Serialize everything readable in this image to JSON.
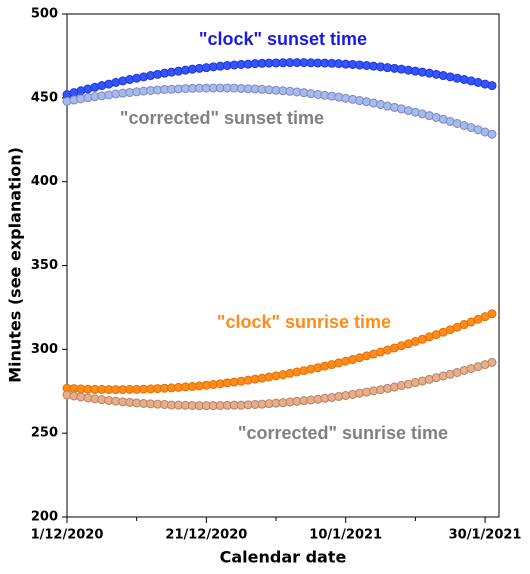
{
  "chart_data": {
    "type": "scatter",
    "x_label": "Calendar date",
    "y_label": "Minutes (see explanation)",
    "xlim": [
      "2020-12-01",
      "2021-02-01"
    ],
    "xticks": [
      {
        "value": "2020-12-01",
        "label": "1/12/2020"
      },
      {
        "value": "2020-12-21",
        "label": "21/12/2020"
      },
      {
        "value": "2021-01-10",
        "label": "10/1/2021"
      },
      {
        "value": "2021-01-30",
        "label": "30/1/2021"
      }
    ],
    "x_minor_ticks": [
      "2020-12-11",
      "2020-12-31",
      "2021-01-20"
    ],
    "ylim": [
      200,
      500
    ],
    "yticks": [
      200,
      250,
      300,
      350,
      400,
      450,
      500
    ],
    "grid": false,
    "x": [
      "2020-12-01",
      "2020-12-02",
      "2020-12-03",
      "2020-12-04",
      "2020-12-05",
      "2020-12-06",
      "2020-12-07",
      "2020-12-08",
      "2020-12-09",
      "2020-12-10",
      "2020-12-11",
      "2020-12-12",
      "2020-12-13",
      "2020-12-14",
      "2020-12-15",
      "2020-12-16",
      "2020-12-17",
      "2020-12-18",
      "2020-12-19",
      "2020-12-20",
      "2020-12-21",
      "2020-12-22",
      "2020-12-23",
      "2020-12-24",
      "2020-12-25",
      "2020-12-26",
      "2020-12-27",
      "2020-12-28",
      "2020-12-29",
      "2020-12-30",
      "2020-12-31",
      "2021-01-01",
      "2021-01-02",
      "2021-01-03",
      "2021-01-04",
      "2021-01-05",
      "2021-01-06",
      "2021-01-07",
      "2021-01-08",
      "2021-01-09",
      "2021-01-10",
      "2021-01-11",
      "2021-01-12",
      "2021-01-13",
      "2021-01-14",
      "2021-01-15",
      "2021-01-16",
      "2021-01-17",
      "2021-01-18",
      "2021-01-19",
      "2021-01-20",
      "2021-01-21",
      "2021-01-22",
      "2021-01-23",
      "2021-01-24",
      "2021-01-25",
      "2021-01-26",
      "2021-01-27",
      "2021-01-28",
      "2021-01-29",
      "2021-01-30",
      "2021-01-31"
    ],
    "series": [
      {
        "name": "\"clock\" sunset time",
        "color": "#3355ff",
        "edge_color": "#1f35d6",
        "label_color": "#1a1ae6",
        "values": [
          451.9,
          453.1,
          454.2,
          455.3,
          456.3,
          457.3,
          458.2,
          459.2,
          460.1,
          460.9,
          461.7,
          462.5,
          463.3,
          464.0,
          464.7,
          465.3,
          465.9,
          466.5,
          467.1,
          467.6,
          468.0,
          468.5,
          468.9,
          469.3,
          469.6,
          469.9,
          470.1,
          470.4,
          470.6,
          470.7,
          470.8,
          470.9,
          471.0,
          471.0,
          471.0,
          470.9,
          470.8,
          470.7,
          470.6,
          470.4,
          470.1,
          469.9,
          469.6,
          469.3,
          468.9,
          468.5,
          468.0,
          467.6,
          467.1,
          466.5,
          465.9,
          465.3,
          464.7,
          464.0,
          463.3,
          462.5,
          461.7,
          460.9,
          460.1,
          459.2,
          458.2,
          457.3
        ]
      },
      {
        "name": "\"corrected\" sunset time",
        "color": "#a9b9ea",
        "edge_color": "#7889c6",
        "label_color": "#808080",
        "values": [
          447.9,
          448.7,
          449.4,
          450.1,
          450.7,
          451.2,
          451.7,
          452.3,
          452.8,
          453.2,
          453.6,
          454.0,
          454.4,
          454.7,
          455.0,
          455.1,
          455.3,
          455.5,
          455.7,
          455.8,
          455.8,
          455.9,
          455.9,
          455.9,
          455.8,
          455.6,
          455.4,
          455.3,
          455.1,
          454.8,
          454.5,
          454.2,
          453.9,
          453.5,
          453.1,
          452.5,
          452.0,
          451.5,
          451.0,
          450.4,
          449.7,
          449.1,
          448.4,
          447.7,
          446.9,
          446.0,
          445.1,
          444.3,
          443.4,
          442.4,
          441.4,
          440.4,
          439.4,
          438.3,
          437.2,
          435.9,
          434.7,
          433.5,
          432.3,
          431.0,
          429.6,
          428.3
        ]
      },
      {
        "name": "\"clock\" sunrise time",
        "color": "#ff8c1a",
        "edge_color": "#e07000",
        "label_color": "#ff8c1a",
        "values": [
          276.8,
          276.6,
          276.4,
          276.2,
          276.1,
          276.1,
          276.0,
          276.0,
          276.0,
          276.1,
          276.1,
          276.2,
          276.4,
          276.6,
          276.8,
          277.0,
          277.3,
          277.6,
          277.9,
          278.2,
          278.6,
          279.0,
          279.5,
          280.0,
          280.5,
          281.0,
          281.6,
          282.2,
          282.8,
          283.5,
          284.2,
          284.9,
          285.7,
          286.5,
          287.3,
          288.2,
          289.0,
          290.0,
          290.9,
          291.9,
          292.9,
          293.9,
          295.0,
          296.1,
          297.2,
          298.4,
          299.6,
          300.8,
          302.1,
          303.3,
          304.7,
          306.0,
          307.4,
          308.8,
          310.2,
          311.7,
          313.2,
          314.8,
          316.3,
          317.9,
          319.5,
          321.2
        ]
      },
      {
        "name": "\"corrected\" sunrise time",
        "color": "#e6ae8c",
        "edge_color": "#b9805e",
        "label_color": "#808080",
        "values": [
          272.8,
          272.2,
          271.6,
          271.0,
          270.5,
          270.0,
          269.5,
          269.1,
          268.7,
          268.4,
          268.0,
          267.7,
          267.5,
          267.3,
          267.1,
          266.8,
          266.7,
          266.6,
          266.5,
          266.4,
          266.4,
          266.4,
          266.5,
          266.6,
          266.7,
          266.7,
          266.9,
          267.1,
          267.3,
          267.6,
          267.9,
          268.2,
          268.6,
          269.0,
          269.4,
          269.8,
          270.2,
          270.8,
          271.3,
          271.9,
          272.5,
          273.1,
          273.8,
          274.5,
          275.2,
          275.9,
          276.7,
          277.5,
          278.4,
          279.2,
          280.2,
          281.1,
          282.1,
          283.1,
          284.1,
          285.1,
          286.2,
          287.4,
          288.5,
          289.7,
          290.9,
          292.2
        ]
      }
    ]
  }
}
